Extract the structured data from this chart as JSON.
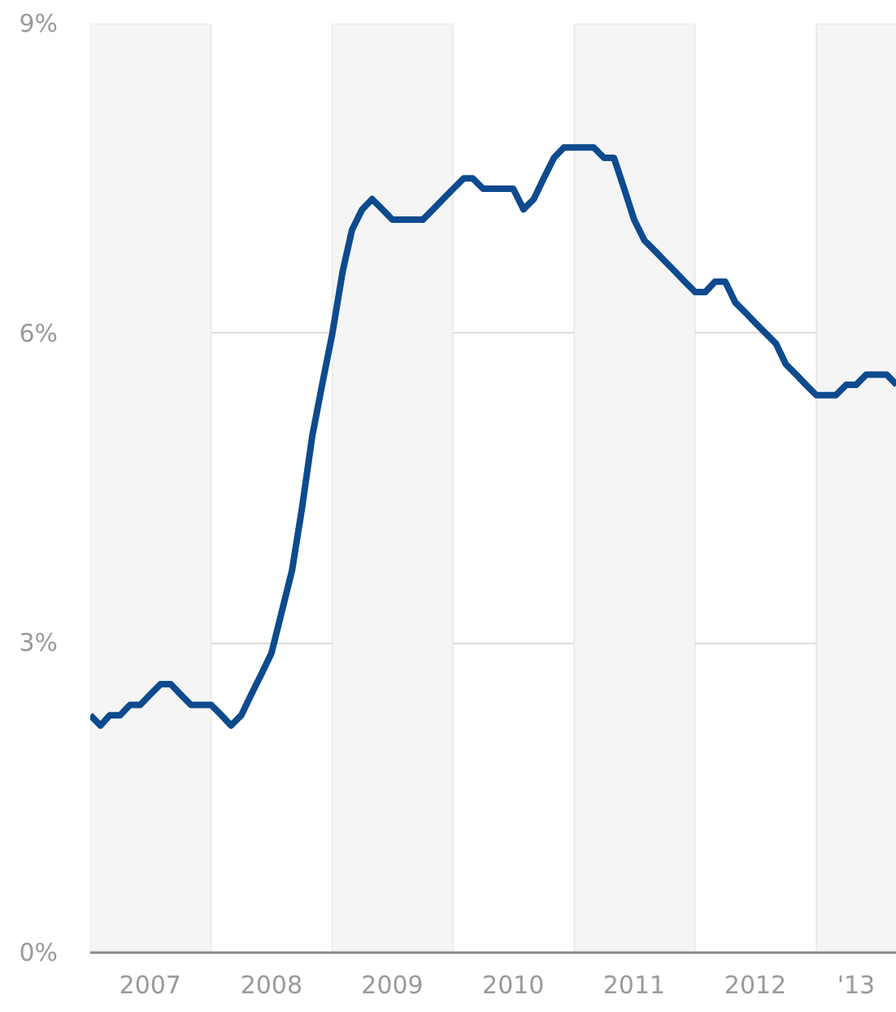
{
  "chart_data": {
    "type": "line",
    "x": [
      "2007-01",
      "2007-02",
      "2007-03",
      "2007-04",
      "2007-05",
      "2007-06",
      "2007-07",
      "2007-08",
      "2007-09",
      "2007-10",
      "2007-11",
      "2007-12",
      "2008-01",
      "2008-02",
      "2008-03",
      "2008-04",
      "2008-05",
      "2008-06",
      "2008-07",
      "2008-08",
      "2008-09",
      "2008-10",
      "2008-11",
      "2008-12",
      "2009-01",
      "2009-02",
      "2009-03",
      "2009-04",
      "2009-05",
      "2009-06",
      "2009-07",
      "2009-08",
      "2009-09",
      "2009-10",
      "2009-11",
      "2009-12",
      "2010-01",
      "2010-02",
      "2010-03",
      "2010-04",
      "2010-05",
      "2010-06",
      "2010-07",
      "2010-08",
      "2010-09",
      "2010-10",
      "2010-11",
      "2010-12",
      "2011-01",
      "2011-02",
      "2011-03",
      "2011-04",
      "2011-05",
      "2011-06",
      "2011-07",
      "2011-08",
      "2011-09",
      "2011-10",
      "2011-11",
      "2011-12",
      "2012-01",
      "2012-02",
      "2012-03",
      "2012-04",
      "2012-05",
      "2012-06",
      "2012-07",
      "2012-08",
      "2012-09",
      "2012-10",
      "2012-11",
      "2012-12",
      "2013-01",
      "2013-02",
      "2013-03",
      "2013-04",
      "2013-05",
      "2013-06",
      "2013-07",
      "2013-08",
      "2013-09"
    ],
    "series": [
      {
        "color": "#0d4a8e",
        "values": [
          2.3,
          2.2,
          2.3,
          2.3,
          2.4,
          2.4,
          2.5,
          2.6,
          2.6,
          2.5,
          2.4,
          2.4,
          2.4,
          2.3,
          2.2,
          2.3,
          2.5,
          2.7,
          2.9,
          3.3,
          3.7,
          4.3,
          5.0,
          5.5,
          6.0,
          6.6,
          7.0,
          7.2,
          7.3,
          7.2,
          7.1,
          7.1,
          7.1,
          7.1,
          7.2,
          7.3,
          7.4,
          7.5,
          7.5,
          7.4,
          7.4,
          7.4,
          7.4,
          7.2,
          7.3,
          7.5,
          7.7,
          7.8,
          7.8,
          7.8,
          7.8,
          7.7,
          7.7,
          7.4,
          7.1,
          6.9,
          6.8,
          6.7,
          6.6,
          6.5,
          6.4,
          6.4,
          6.5,
          6.5,
          6.3,
          6.2,
          6.1,
          6.0,
          5.9,
          5.7,
          5.6,
          5.5,
          5.4,
          5.4,
          5.4,
          5.5,
          5.5,
          5.6,
          5.6,
          5.6,
          5.5
        ]
      }
    ],
    "xlim": [
      "2007-01",
      "2013-09"
    ],
    "xticks": [
      {
        "value": "2007-07",
        "label": "2007"
      },
      {
        "value": "2008-07",
        "label": "2008"
      },
      {
        "value": "2009-07",
        "label": "2009"
      },
      {
        "value": "2010-07",
        "label": "2010"
      },
      {
        "value": "2011-07",
        "label": "2011"
      },
      {
        "value": "2012-07",
        "label": "2012"
      },
      {
        "value": "2013-05",
        "label": "'13"
      }
    ],
    "ylim": [
      0,
      9
    ],
    "yticks": [
      {
        "value": 0,
        "label": "0%"
      },
      {
        "value": 3,
        "label": "3%"
      },
      {
        "value": 6,
        "label": "6%"
      },
      {
        "value": 9,
        "label": "9%"
      }
    ],
    "bands": [
      {
        "axis": "x",
        "from": "2007-01",
        "to": "2008-01",
        "color": "#f5f5f5"
      },
      {
        "axis": "x",
        "from": "2009-01",
        "to": "2010-01",
        "color": "#f5f5f5"
      },
      {
        "axis": "x",
        "from": "2011-01",
        "to": "2012-01",
        "color": "#f5f5f5"
      },
      {
        "axis": "x",
        "from": "2013-01",
        "to": "2013-09",
        "color": "#f5f5f5"
      }
    ],
    "grid": "y",
    "line_style": "solid",
    "marker": "none"
  }
}
